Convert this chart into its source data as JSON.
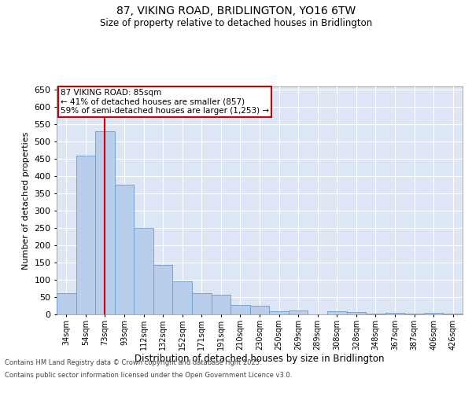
{
  "title_line1": "87, VIKING ROAD, BRIDLINGTON, YO16 6TW",
  "title_line2": "Size of property relative to detached houses in Bridlington",
  "xlabel": "Distribution of detached houses by size in Bridlington",
  "ylabel": "Number of detached properties",
  "bar_color": "#b8ceea",
  "bar_edge_color": "#6699cc",
  "background_color": "#dce6f5",
  "grid_color": "#ffffff",
  "annotation_box_color": "#cc0000",
  "vline_color": "#cc0000",
  "categories": [
    "34sqm",
    "54sqm",
    "73sqm",
    "93sqm",
    "112sqm",
    "132sqm",
    "152sqm",
    "171sqm",
    "191sqm",
    "210sqm",
    "230sqm",
    "250sqm",
    "269sqm",
    "289sqm",
    "308sqm",
    "328sqm",
    "348sqm",
    "367sqm",
    "387sqm",
    "406sqm",
    "426sqm"
  ],
  "values": [
    62,
    460,
    530,
    375,
    250,
    143,
    95,
    62,
    57,
    27,
    25,
    10,
    12,
    0,
    8,
    7,
    3,
    5,
    3,
    5,
    3
  ],
  "ylim": [
    0,
    660
  ],
  "yticks": [
    0,
    50,
    100,
    150,
    200,
    250,
    300,
    350,
    400,
    450,
    500,
    550,
    600,
    650
  ],
  "vline_x": 2.0,
  "annotation_text_line1": "87 VIKING ROAD: 85sqm",
  "annotation_text_line2": "← 41% of detached houses are smaller (857)",
  "annotation_text_line3": "59% of semi-detached houses are larger (1,253) →",
  "footer_line1": "Contains HM Land Registry data © Crown copyright and database right 2025.",
  "footer_line2": "Contains public sector information licensed under the Open Government Licence v3.0."
}
